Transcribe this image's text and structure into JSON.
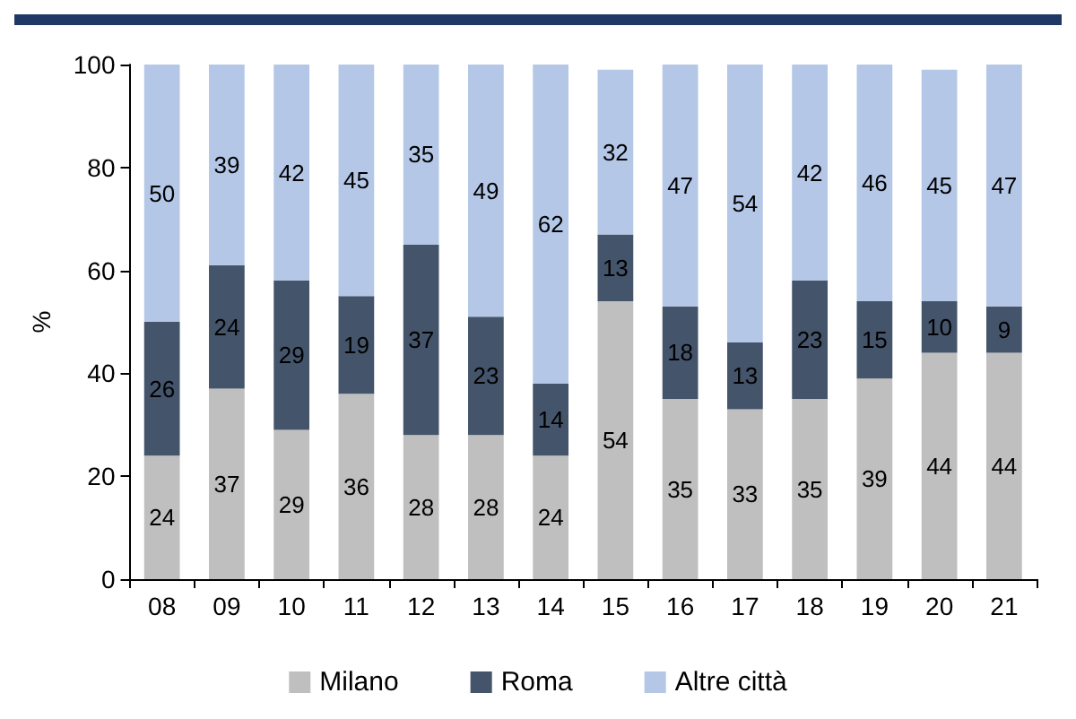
{
  "chart_data": {
    "type": "bar",
    "stacked": true,
    "ylabel": "%",
    "categories": [
      "08",
      "09",
      "10",
      "11",
      "12",
      "13",
      "14",
      "15",
      "16",
      "17",
      "18",
      "19",
      "20",
      "21"
    ],
    "series": [
      {
        "name": "Milano",
        "color": "#bfbfbf",
        "values": [
          24,
          37,
          29,
          36,
          28,
          28,
          24,
          54,
          35,
          33,
          35,
          39,
          44,
          44
        ]
      },
      {
        "name": "Roma",
        "color": "#44546a",
        "values": [
          26,
          24,
          29,
          19,
          37,
          23,
          14,
          13,
          18,
          13,
          23,
          15,
          10,
          9
        ]
      },
      {
        "name": "Altre città",
        "color": "#b4c7e7",
        "values": [
          50,
          39,
          42,
          45,
          35,
          49,
          62,
          32,
          47,
          54,
          42,
          46,
          45,
          47
        ]
      }
    ],
    "ylim": [
      0,
      100
    ],
    "yticks": [
      0,
      20,
      40,
      60,
      80,
      100
    ],
    "grid": false,
    "legend": "bottom",
    "data_labels": true
  }
}
